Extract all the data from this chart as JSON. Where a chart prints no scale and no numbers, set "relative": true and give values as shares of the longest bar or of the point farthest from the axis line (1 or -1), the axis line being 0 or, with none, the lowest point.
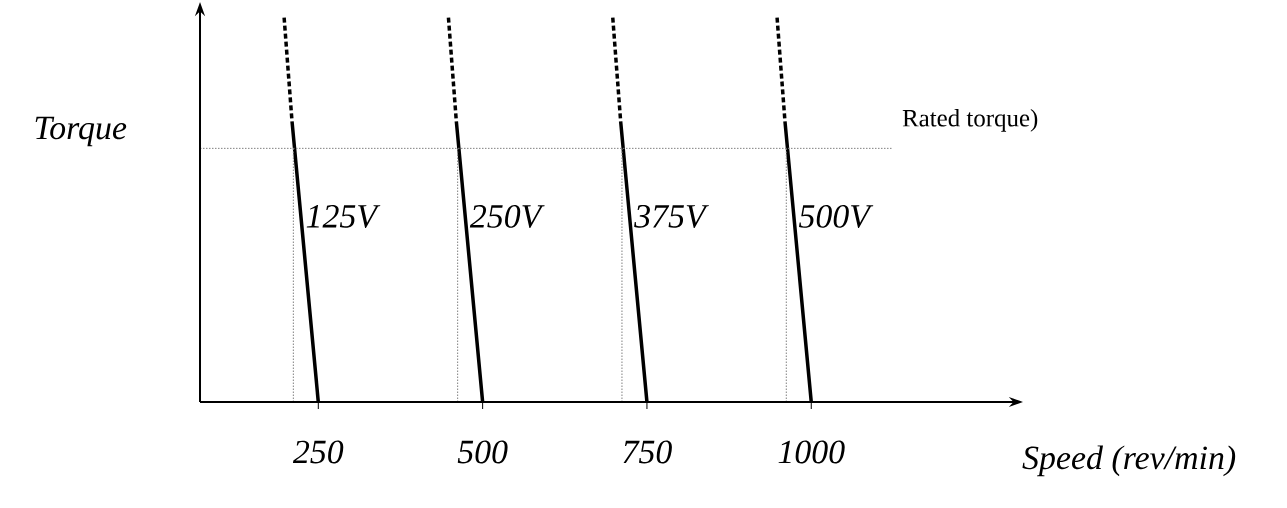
{
  "chart_data": {
    "type": "line",
    "xlabel": "Speed (rev/min)",
    "ylabel": "Torque",
    "relative": true,
    "xlim": [
      70,
      1310
    ],
    "xticks": [
      250,
      500,
      750,
      1000
    ],
    "line_style": "solid",
    "grid": false,
    "series": [
      {
        "color": "#000000",
        "x": [
          210,
          250
        ],
        "values": [
          0.73,
          0
        ]
      },
      {
        "color": "#000000",
        "x": [
          198,
          210
        ],
        "values": [
          1,
          0.73
        ],
        "line_style": "dashed"
      },
      {
        "color": "#808080",
        "x": [
          212,
          212
        ],
        "values": [
          0,
          0.66
        ],
        "line_style": "dotted"
      },
      {
        "color": "#000000",
        "x": [
          460,
          500
        ],
        "values": [
          0.73,
          0
        ]
      },
      {
        "color": "#000000",
        "x": [
          448,
          460
        ],
        "values": [
          1,
          0.73
        ],
        "line_style": "dashed"
      },
      {
        "color": "#808080",
        "x": [
          462,
          462
        ],
        "values": [
          0,
          0.66
        ],
        "line_style": "dotted"
      },
      {
        "color": "#000000",
        "x": [
          710,
          750
        ],
        "values": [
          0.73,
          0
        ]
      },
      {
        "color": "#000000",
        "x": [
          698,
          710
        ],
        "values": [
          1,
          0.73
        ],
        "line_style": "dashed"
      },
      {
        "color": "#808080",
        "x": [
          712,
          712
        ],
        "values": [
          0,
          0.66
        ],
        "line_style": "dotted"
      },
      {
        "color": "#000000",
        "x": [
          960,
          1000
        ],
        "values": [
          0.73,
          0
        ]
      },
      {
        "color": "#000000",
        "x": [
          948,
          960
        ],
        "values": [
          1,
          0.73
        ],
        "line_style": "dashed"
      },
      {
        "color": "#808080",
        "x": [
          962,
          962
        ],
        "values": [
          0,
          0.66
        ],
        "line_style": "dotted"
      }
    ],
    "ref_lines": [
      {
        "axis": "y",
        "value": 0.66,
        "label": "Rated torque)",
        "line_style": "dotted",
        "color": "#808080"
      }
    ],
    "annotations": [
      "125V",
      "250V",
      "375V",
      "500V"
    ]
  }
}
